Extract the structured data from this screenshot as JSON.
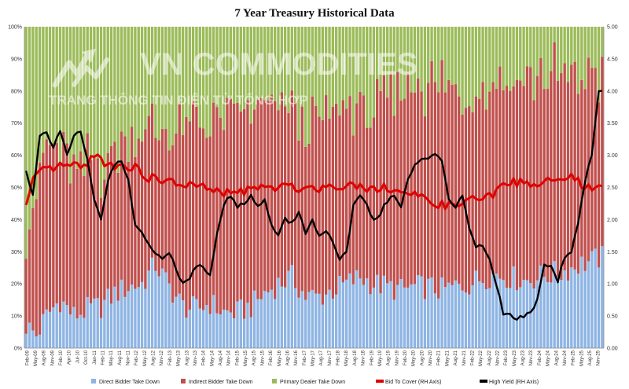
{
  "watermark": {
    "brand": "VN COMMODITIES",
    "tagline": "TRANG THÔNG TIN ĐIỆN TỬ TỔNG HỢP"
  },
  "chart_data": {
    "type": "bar",
    "title": "7 Year Treasury Historical Data",
    "left_axis": {
      "min": 0,
      "max": 100,
      "ticks": [
        "0%",
        "10%",
        "20%",
        "30%",
        "40%",
        "50%",
        "60%",
        "70%",
        "80%",
        "90%",
        "100%"
      ]
    },
    "right_axis": {
      "min": 0,
      "max": 5,
      "ticks": [
        "0.00",
        "0.50",
        "1.00",
        "1.50",
        "2.00",
        "2.50",
        "3.00",
        "3.50",
        "4.00",
        "4.50",
        "5.00"
      ]
    },
    "x_tick_labels": [
      "Feb-09",
      "May-09",
      "Aug-09",
      "Nov-09",
      "Feb-10",
      "Apr-10",
      "Jul-10",
      "Oct-10",
      "Jan-11",
      "Feb-11",
      "May-11",
      "Aug-11",
      "Nov-11",
      "Feb-12",
      "May-12",
      "Aug-12",
      "Nov-12",
      "Feb-13",
      "May-13",
      "Aug-13",
      "Nov-13",
      "Feb-14",
      "May-14",
      "Aug-14",
      "Nov-14",
      "Feb-15",
      "May-15",
      "Aug-15",
      "Nov-15",
      "Feb-16",
      "May-16",
      "Aug-16",
      "Nov-16",
      "Feb-17",
      "May-17",
      "Aug-17",
      "Nov-17",
      "Feb-18",
      "May-18",
      "Aug-18",
      "Nov-18",
      "Feb-19",
      "May-19",
      "Aug-19",
      "Nov-19",
      "Feb-20",
      "May-20",
      "Aug-20",
      "Nov-20",
      "Feb-21",
      "May-21",
      "Aug-21",
      "Nov-21",
      "Feb-22",
      "May-22",
      "Aug-22",
      "Nov-22",
      "Feb-23",
      "May-23",
      "Aug-23",
      "Nov-23",
      "Feb-24",
      "May-24",
      "Aug-24",
      "Nov-24",
      "Feb-25",
      "May-25",
      "Aug-25",
      "Nov-25"
    ],
    "series": [
      {
        "name": "Direct Bidder Take Down",
        "color": "#8eb4e3",
        "axis": "left",
        "kind": "stacked-bar",
        "anchors": [
          [
            0,
            7
          ],
          [
            3,
            4
          ],
          [
            6,
            10
          ],
          [
            10,
            15
          ],
          [
            14,
            10
          ],
          [
            18,
            12
          ],
          [
            22,
            13
          ],
          [
            26,
            17
          ],
          [
            30,
            19
          ],
          [
            34,
            20
          ],
          [
            38,
            26
          ],
          [
            42,
            19
          ],
          [
            46,
            13
          ],
          [
            50,
            12
          ],
          [
            54,
            14
          ],
          [
            58,
            11
          ],
          [
            62,
            11
          ],
          [
            66,
            13
          ],
          [
            70,
            17
          ],
          [
            74,
            20
          ],
          [
            78,
            22
          ],
          [
            82,
            16
          ],
          [
            86,
            16
          ],
          [
            90,
            18
          ],
          [
            94,
            20
          ],
          [
            98,
            22
          ],
          [
            102,
            20
          ],
          [
            106,
            19
          ],
          [
            110,
            18
          ],
          [
            114,
            19
          ],
          [
            118,
            19
          ],
          [
            122,
            18
          ],
          [
            126,
            19
          ],
          [
            130,
            20
          ],
          [
            134,
            22
          ],
          [
            138,
            23
          ],
          [
            142,
            22
          ],
          [
            146,
            21
          ],
          [
            150,
            22
          ],
          [
            154,
            23
          ],
          [
            158,
            24
          ],
          [
            162,
            26
          ],
          [
            166,
            27
          ],
          [
            168,
            28
          ]
        ]
      },
      {
        "name": "Indirect Bidder Take Down",
        "color": "#c0504d",
        "axis": "left",
        "kind": "stacked-bar",
        "anchors": [
          [
            0,
            30
          ],
          [
            3,
            45
          ],
          [
            6,
            52
          ],
          [
            10,
            48
          ],
          [
            14,
            44
          ],
          [
            18,
            45
          ],
          [
            22,
            43
          ],
          [
            26,
            44
          ],
          [
            30,
            47
          ],
          [
            34,
            48
          ],
          [
            38,
            42
          ],
          [
            42,
            47
          ],
          [
            46,
            55
          ],
          [
            50,
            58
          ],
          [
            54,
            57
          ],
          [
            58,
            60
          ],
          [
            62,
            62
          ],
          [
            66,
            60
          ],
          [
            70,
            58
          ],
          [
            74,
            55
          ],
          [
            78,
            53
          ],
          [
            82,
            52
          ],
          [
            86,
            55
          ],
          [
            90,
            56
          ],
          [
            94,
            54
          ],
          [
            98,
            52
          ],
          [
            102,
            55
          ],
          [
            106,
            57
          ],
          [
            110,
            62
          ],
          [
            114,
            62
          ],
          [
            118,
            63
          ],
          [
            122,
            64
          ],
          [
            126,
            60
          ],
          [
            130,
            60
          ],
          [
            134,
            60
          ],
          [
            138,
            62
          ],
          [
            142,
            62
          ],
          [
            146,
            64
          ],
          [
            150,
            63
          ],
          [
            154,
            62
          ],
          [
            158,
            62
          ],
          [
            162,
            58
          ],
          [
            166,
            58
          ],
          [
            168,
            56
          ]
        ]
      },
      {
        "name": "Primary Dealer Take Down",
        "color": "#9bbb59",
        "axis": "left",
        "kind": "stacked-bar"
      },
      {
        "name": "Bid To Cover (RH Axis)",
        "color": "#e00000",
        "axis": "right",
        "kind": "line",
        "anchors": [
          [
            0,
            2.2
          ],
          [
            2,
            2.6
          ],
          [
            5,
            2.75
          ],
          [
            8,
            2.8
          ],
          [
            12,
            2.85
          ],
          [
            16,
            2.8
          ],
          [
            18,
            2.9
          ],
          [
            20,
            3.0
          ],
          [
            24,
            2.85
          ],
          [
            28,
            2.85
          ],
          [
            32,
            2.8
          ],
          [
            36,
            2.65
          ],
          [
            40,
            2.6
          ],
          [
            46,
            2.55
          ],
          [
            52,
            2.5
          ],
          [
            58,
            2.4
          ],
          [
            64,
            2.45
          ],
          [
            70,
            2.5
          ],
          [
            76,
            2.5
          ],
          [
            82,
            2.5
          ],
          [
            88,
            2.5
          ],
          [
            94,
            2.55
          ],
          [
            100,
            2.5
          ],
          [
            106,
            2.5
          ],
          [
            112,
            2.4
          ],
          [
            118,
            2.3
          ],
          [
            124,
            2.2
          ],
          [
            130,
            2.3
          ],
          [
            136,
            2.35
          ],
          [
            142,
            2.6
          ],
          [
            148,
            2.55
          ],
          [
            154,
            2.6
          ],
          [
            160,
            2.65
          ],
          [
            166,
            2.45
          ],
          [
            168,
            2.5
          ]
        ]
      },
      {
        "name": "High Yield (RH Axis)",
        "color": "#000000",
        "axis": "right",
        "kind": "line",
        "anchors": [
          [
            0,
            2.75
          ],
          [
            2,
            2.4
          ],
          [
            4,
            3.3
          ],
          [
            6,
            3.35
          ],
          [
            8,
            3.15
          ],
          [
            10,
            3.4
          ],
          [
            12,
            3.0
          ],
          [
            14,
            3.3
          ],
          [
            16,
            3.35
          ],
          [
            18,
            2.9
          ],
          [
            20,
            2.3
          ],
          [
            22,
            2.0
          ],
          [
            24,
            2.6
          ],
          [
            26,
            2.85
          ],
          [
            28,
            2.9
          ],
          [
            30,
            2.6
          ],
          [
            32,
            1.9
          ],
          [
            34,
            1.8
          ],
          [
            36,
            1.6
          ],
          [
            38,
            1.5
          ],
          [
            40,
            1.4
          ],
          [
            42,
            1.5
          ],
          [
            44,
            1.2
          ],
          [
            46,
            1.0
          ],
          [
            48,
            1.1
          ],
          [
            50,
            1.3
          ],
          [
            52,
            1.25
          ],
          [
            54,
            1.15
          ],
          [
            56,
            1.8
          ],
          [
            58,
            2.25
          ],
          [
            60,
            2.35
          ],
          [
            62,
            2.2
          ],
          [
            64,
            2.25
          ],
          [
            66,
            2.4
          ],
          [
            68,
            2.2
          ],
          [
            70,
            2.3
          ],
          [
            72,
            1.9
          ],
          [
            74,
            1.75
          ],
          [
            76,
            2.0
          ],
          [
            78,
            1.95
          ],
          [
            80,
            2.1
          ],
          [
            82,
            1.8
          ],
          [
            84,
            2.0
          ],
          [
            86,
            1.75
          ],
          [
            88,
            1.8
          ],
          [
            90,
            1.65
          ],
          [
            92,
            1.35
          ],
          [
            94,
            1.5
          ],
          [
            96,
            2.2
          ],
          [
            98,
            2.35
          ],
          [
            100,
            2.2
          ],
          [
            102,
            2.0
          ],
          [
            104,
            2.1
          ],
          [
            106,
            2.3
          ],
          [
            108,
            2.35
          ],
          [
            110,
            2.2
          ],
          [
            112,
            2.6
          ],
          [
            114,
            2.85
          ],
          [
            116,
            2.95
          ],
          [
            118,
            2.95
          ],
          [
            120,
            3.05
          ],
          [
            122,
            2.9
          ],
          [
            124,
            2.3
          ],
          [
            126,
            2.15
          ],
          [
            128,
            2.4
          ],
          [
            130,
            1.9
          ],
          [
            132,
            1.6
          ],
          [
            134,
            1.55
          ],
          [
            136,
            1.4
          ],
          [
            138,
            1.0
          ],
          [
            140,
            0.55
          ],
          [
            142,
            0.5
          ],
          [
            144,
            0.45
          ],
          [
            146,
            0.5
          ],
          [
            148,
            0.55
          ],
          [
            150,
            0.75
          ],
          [
            152,
            1.3
          ],
          [
            154,
            1.25
          ],
          [
            156,
            1.05
          ],
          [
            158,
            1.4
          ],
          [
            160,
            1.5
          ],
          [
            162,
            1.95
          ],
          [
            164,
            2.6
          ],
          [
            166,
            3.0
          ],
          [
            168,
            4.0
          ]
        ]
      }
    ],
    "bars_count": 170,
    "legend_position": "bottom",
    "grid": false
  }
}
